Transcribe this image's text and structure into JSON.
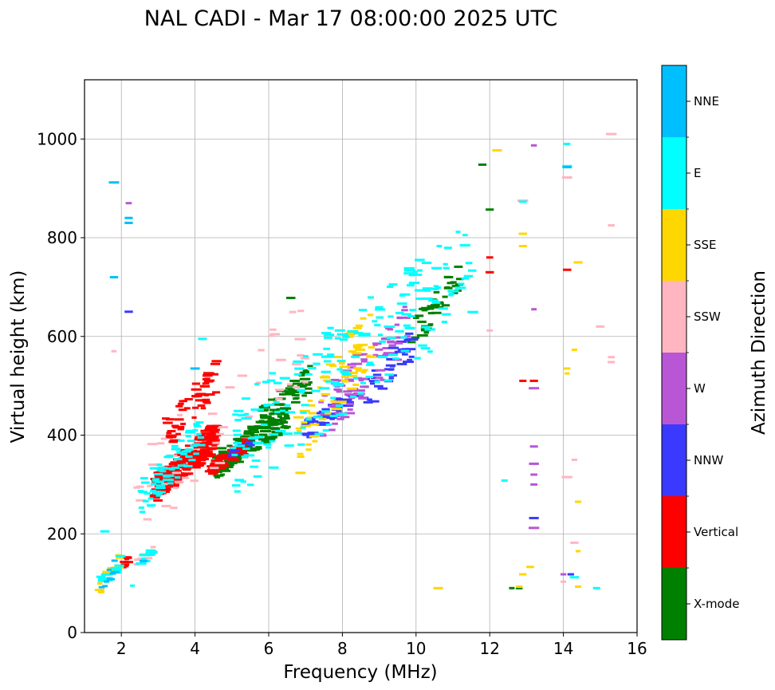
{
  "chart_data": {
    "type": "scatter",
    "title": "NAL CADI - Mar 17 08:00:00 2025 UTC",
    "xlabel": "Frequency (MHz)",
    "ylabel": "Virtual height (km)",
    "xlim": [
      1,
      16
    ],
    "ylim": [
      0,
      1120
    ],
    "xticks": [
      "2",
      "4",
      "6",
      "8",
      "10",
      "12",
      "14",
      "16"
    ],
    "xtick_values": [
      2,
      4,
      6,
      8,
      10,
      12,
      14,
      16
    ],
    "yticks": [
      "0",
      "200",
      "400",
      "600",
      "800",
      "1000"
    ],
    "ytick_values": [
      0,
      200,
      400,
      600,
      800,
      1000
    ],
    "grid": true,
    "colorbar": {
      "label": "Azimuth Direction",
      "categories": [
        "X-mode",
        "Vertical",
        "NNW",
        "W",
        "SSW",
        "SSE",
        "E",
        "NNE"
      ],
      "colors": [
        "#008000",
        "#ff0000",
        "#3a3aff",
        "#b856d6",
        "#ffb6c1",
        "#ffd700",
        "#00ffff",
        "#00bfff"
      ]
    },
    "series": [
      {
        "name": "X-mode",
        "color": "#008000",
        "clusters": [
          {
            "f": [
              4.6,
              6.5
            ],
            "h": [
              340,
              440
            ],
            "n": 150
          },
          {
            "f": [
              5.8,
              7.2
            ],
            "h": [
              430,
              520
            ],
            "n": 60
          },
          {
            "f": [
              9.8,
              11.2
            ],
            "h": [
              600,
              720
            ],
            "n": 40
          }
        ],
        "points": [
          [
            6.6,
            678
          ],
          [
            11.8,
            948
          ],
          [
            12.0,
            857
          ],
          [
            12.8,
            90
          ],
          [
            12.6,
            90
          ]
        ]
      },
      {
        "name": "Vertical",
        "color": "#ff0000",
        "clusters": [
          {
            "f": [
              2.9,
              4.6
            ],
            "h": [
              290,
              400
            ],
            "n": 240
          },
          {
            "f": [
              3.2,
              4.6
            ],
            "h": [
              400,
              520
            ],
            "n": 60
          },
          {
            "f": [
              4.4,
              5.4
            ],
            "h": [
              330,
              380
            ],
            "n": 50
          },
          {
            "f": [
              1.9,
              2.2
            ],
            "h": [
              125,
              150
            ],
            "n": 12
          }
        ],
        "points": [
          [
            12.0,
            760
          ],
          [
            12.0,
            730
          ],
          [
            13.2,
            510
          ],
          [
            12.9,
            510
          ],
          [
            14.1,
            735
          ]
        ]
      },
      {
        "name": "NNW",
        "color": "#3a3aff",
        "clusters": [
          {
            "f": [
              7.0,
              8.4
            ],
            "h": [
              410,
              480
            ],
            "n": 50
          },
          {
            "f": [
              8.6,
              10.0
            ],
            "h": [
              480,
              600
            ],
            "n": 40
          },
          {
            "f": [
              4.8,
              5.8
            ],
            "h": [
              360,
              390
            ],
            "n": 10
          }
        ],
        "points": [
          [
            2.2,
            650
          ],
          [
            13.2,
            232
          ],
          [
            14.2,
            118
          ]
        ]
      },
      {
        "name": "W",
        "color": "#b856d6",
        "clusters": [
          {
            "f": [
              7.4,
              9.8
            ],
            "h": [
              430,
              620
            ],
            "n": 80
          }
        ],
        "points": [
          [
            2.2,
            870
          ],
          [
            13.2,
            987
          ],
          [
            13.2,
            655
          ],
          [
            13.2,
            495
          ],
          [
            13.2,
            377
          ],
          [
            13.2,
            342
          ],
          [
            13.2,
            320
          ],
          [
            13.2,
            300
          ],
          [
            13.2,
            212
          ],
          [
            14.0,
            118
          ]
        ]
      },
      {
        "name": "SSW",
        "color": "#ffb6c1",
        "clusters": [
          {
            "f": [
              2.4,
              2.9
            ],
            "h": [
              140,
              170
            ],
            "n": 10
          },
          {
            "f": [
              2.4,
              7.0
            ],
            "h": [
              270,
              600
            ],
            "n": 50
          }
        ],
        "points": [
          [
            15.3,
            1010
          ],
          [
            15.3,
            825
          ],
          [
            15.3,
            558
          ],
          [
            15.3,
            548
          ],
          [
            14.1,
            922
          ],
          [
            12.9,
            875
          ],
          [
            15.0,
            620
          ],
          [
            14.3,
            350
          ],
          [
            14.3,
            182
          ],
          [
            14.1,
            315
          ],
          [
            12.0,
            612
          ],
          [
            1.8,
            570
          ],
          [
            14.0,
            103
          ]
        ]
      },
      {
        "name": "SSE",
        "color": "#ffd700",
        "clusters": [
          {
            "f": [
              6.8,
              8.8
            ],
            "h": [
              380,
              610
            ],
            "n": 70
          },
          {
            "f": [
              1.4,
              2.0
            ],
            "h": [
              90,
              150
            ],
            "n": 12
          }
        ],
        "points": [
          [
            12.2,
            977
          ],
          [
            12.9,
            808
          ],
          [
            12.9,
            783
          ],
          [
            14.4,
            750
          ],
          [
            14.3,
            573
          ],
          [
            14.1,
            535
          ],
          [
            14.1,
            525
          ],
          [
            14.4,
            265
          ],
          [
            14.4,
            165
          ],
          [
            14.4,
            93
          ],
          [
            13.1,
            133
          ],
          [
            12.9,
            118
          ],
          [
            10.6,
            90
          ],
          [
            12.8,
            93
          ]
        ]
      },
      {
        "name": "E",
        "color": "#00ffff",
        "clusters": [
          {
            "f": [
              2.5,
              4.2
            ],
            "h": [
              270,
              400
            ],
            "n": 70
          },
          {
            "f": [
              5.0,
              11.6
            ],
            "h": [
              370,
              740
            ],
            "n": 200
          },
          {
            "f": [
              1.4,
              2.1
            ],
            "h": [
              95,
              150
            ],
            "n": 14
          },
          {
            "f": [
              2.5,
              2.9
            ],
            "h": [
              140,
              170
            ],
            "n": 10
          }
        ],
        "points": [
          [
            2.3,
            95
          ],
          [
            4.2,
            595
          ],
          [
            12.9,
            873
          ],
          [
            14.1,
            945
          ],
          [
            14.1,
            990
          ],
          [
            12.4,
            308
          ],
          [
            14.3,
            112
          ],
          [
            14.9,
            90
          ],
          [
            1.55,
            205
          ]
        ]
      },
      {
        "name": "NNE",
        "color": "#00bfff",
        "clusters": [
          {
            "f": [
              1.4,
              2.0
            ],
            "h": [
              95,
              150
            ],
            "n": 8
          }
        ],
        "points": [
          [
            1.8,
            912
          ],
          [
            1.8,
            720
          ],
          [
            2.2,
            830
          ],
          [
            2.2,
            840
          ],
          [
            4.0,
            535
          ],
          [
            14.1,
            943
          ],
          [
            2.6,
            145
          ]
        ]
      }
    ]
  }
}
